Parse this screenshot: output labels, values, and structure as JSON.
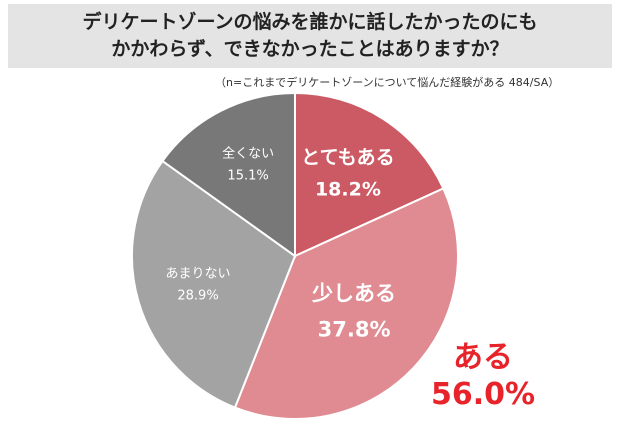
{
  "title_lines": [
    "デリケートゾーンの悩みを誰かに話したかったのにも",
    "かかわらず、できなかったことはありますか？"
  ],
  "note": "（n=これまでデリケートゾーンについて悩んだ経験がある 484/SA）",
  "callout": {
    "label": "ある",
    "value": "56.0%"
  },
  "chart_data": {
    "type": "pie",
    "title": "デリケートゾーンの悩みを誰かに話したかったのにもかかわらず、できなかったことはありますか？",
    "start_angle_deg": 0,
    "direction": "clockwise",
    "slices": [
      {
        "name": "とてもある",
        "value": 18.2,
        "label": "18.2%",
        "color": "#cc5a64"
      },
      {
        "name": "少しある",
        "value": 37.8,
        "label": "37.8%",
        "color": "#df8b91"
      },
      {
        "name": "あまりない",
        "value": 28.9,
        "label": "28.9%",
        "color": "#a3a3a3"
      },
      {
        "name": "全くない",
        "value": 15.1,
        "label": "15.1%",
        "color": "#787878"
      }
    ]
  }
}
